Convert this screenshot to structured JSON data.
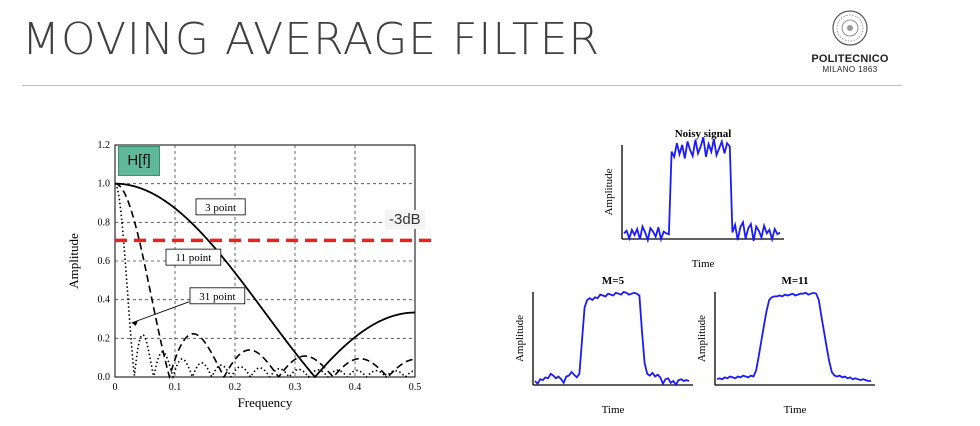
{
  "slide": {
    "title": "MOVING AVERAGE FILTER",
    "logo_brand": "POLITECNICO",
    "logo_sub": "MILANO 1863"
  },
  "annotations": {
    "hf_label": "H[f]",
    "db_label": "-3dB",
    "db_value": 0.707,
    "db_color": "#e8231f"
  },
  "chart_data": [
    {
      "type": "line",
      "xlabel": "Frequency",
      "ylabel": "Amplitude",
      "xlim": [
        0,
        0.5
      ],
      "ylim": [
        0,
        1.2
      ],
      "xticks": [
        "0",
        "0.1",
        "0.2",
        "0.3",
        "0.4",
        "0.5"
      ],
      "yticks": [
        "0.0",
        "0.2",
        "0.4",
        "0.6",
        "0.8",
        "1.0",
        "1.2"
      ],
      "grid": true,
      "series": [
        {
          "name": "3 point",
          "M": 3,
          "style": "solid"
        },
        {
          "name": "11 point",
          "M": 11,
          "style": "dashed"
        },
        {
          "name": "31 point",
          "M": 31,
          "style": "dotted"
        }
      ],
      "label_positions": [
        {
          "name": "3 point",
          "x": 0.135,
          "y": 0.88
        },
        {
          "name": "11 point",
          "x": 0.085,
          "y": 0.62
        },
        {
          "name": "31 point",
          "x": 0.125,
          "y": 0.42
        }
      ]
    },
    {
      "type": "line",
      "title": "Noisy signal",
      "xlabel": "Time",
      "ylabel": "Amplitude",
      "series": [
        {
          "values": [
            0.02,
            0.05,
            -0.04,
            0.06,
            0.0,
            0.07,
            -0.05,
            0.1,
            0.03,
            -0.06,
            0.08,
            0.04,
            -0.02,
            0.09,
            -0.05,
            0.04,
            0.02,
            0.01,
            0.98,
            0.92,
            1.08,
            0.95,
            1.06,
            0.9,
            1.1,
            1.0,
            0.93,
            1.12,
            0.96,
            1.04,
            1.15,
            0.92,
            1.07,
            0.98,
            1.13,
            0.94,
            1.02,
            1.1,
            0.96,
            1.08,
            1.04,
            0.03,
            0.12,
            -0.06,
            0.09,
            0.15,
            -0.04,
            0.08,
            0.13,
            -0.07,
            0.1,
            0.05,
            -0.03,
            0.11,
            0.02,
            0.06,
            -0.05,
            0.07,
            0.01,
            0.03
          ],
          "color": "#1a1aff"
        }
      ]
    },
    {
      "type": "line",
      "title": "M=5",
      "xlabel": "Time",
      "ylabel": "Amplitude",
      "series": [
        {
          "values": [
            0.0,
            -0.03,
            0.02,
            0.01,
            0.04,
            0.03,
            0.08,
            0.06,
            0.03,
            0.05,
            0.02,
            -0.02,
            0.05,
            0.06,
            0.1,
            0.07,
            0.04,
            0.08,
            0.45,
            0.82,
            0.9,
            0.92,
            0.9,
            0.93,
            0.92,
            0.96,
            0.95,
            0.94,
            0.97,
            0.96,
            0.95,
            0.98,
            0.97,
            0.96,
            0.99,
            0.98,
            0.96,
            0.97,
            0.98,
            0.97,
            0.95,
            0.55,
            0.2,
            0.08,
            0.06,
            0.09,
            0.05,
            0.07,
            0.04,
            -0.03,
            0.02,
            0.03,
            -0.02,
            0.0,
            -0.04,
            0.01,
            0.02,
            0.0,
            0.01,
            0.0
          ],
          "color": "#1a1aff"
        }
      ]
    },
    {
      "type": "line",
      "title": "M=11",
      "xlabel": "Time",
      "ylabel": "Amplitude",
      "series": [
        {
          "values": [
            0.02,
            0.03,
            0.02,
            0.04,
            0.03,
            0.05,
            0.04,
            0.03,
            0.05,
            0.04,
            0.06,
            0.05,
            0.04,
            0.06,
            0.05,
            0.12,
            0.28,
            0.45,
            0.62,
            0.78,
            0.9,
            0.93,
            0.94,
            0.94,
            0.95,
            0.94,
            0.96,
            0.95,
            0.96,
            0.97,
            0.95,
            0.96,
            0.97,
            0.97,
            0.98,
            0.96,
            0.97,
            0.98,
            0.97,
            0.9,
            0.72,
            0.55,
            0.38,
            0.22,
            0.1,
            0.06,
            0.05,
            0.06,
            0.04,
            0.05,
            0.03,
            0.04,
            0.02,
            0.03,
            0.02,
            0.01,
            0.02,
            0.01,
            0.0,
            0.0
          ],
          "color": "#1a1aff"
        }
      ]
    }
  ]
}
